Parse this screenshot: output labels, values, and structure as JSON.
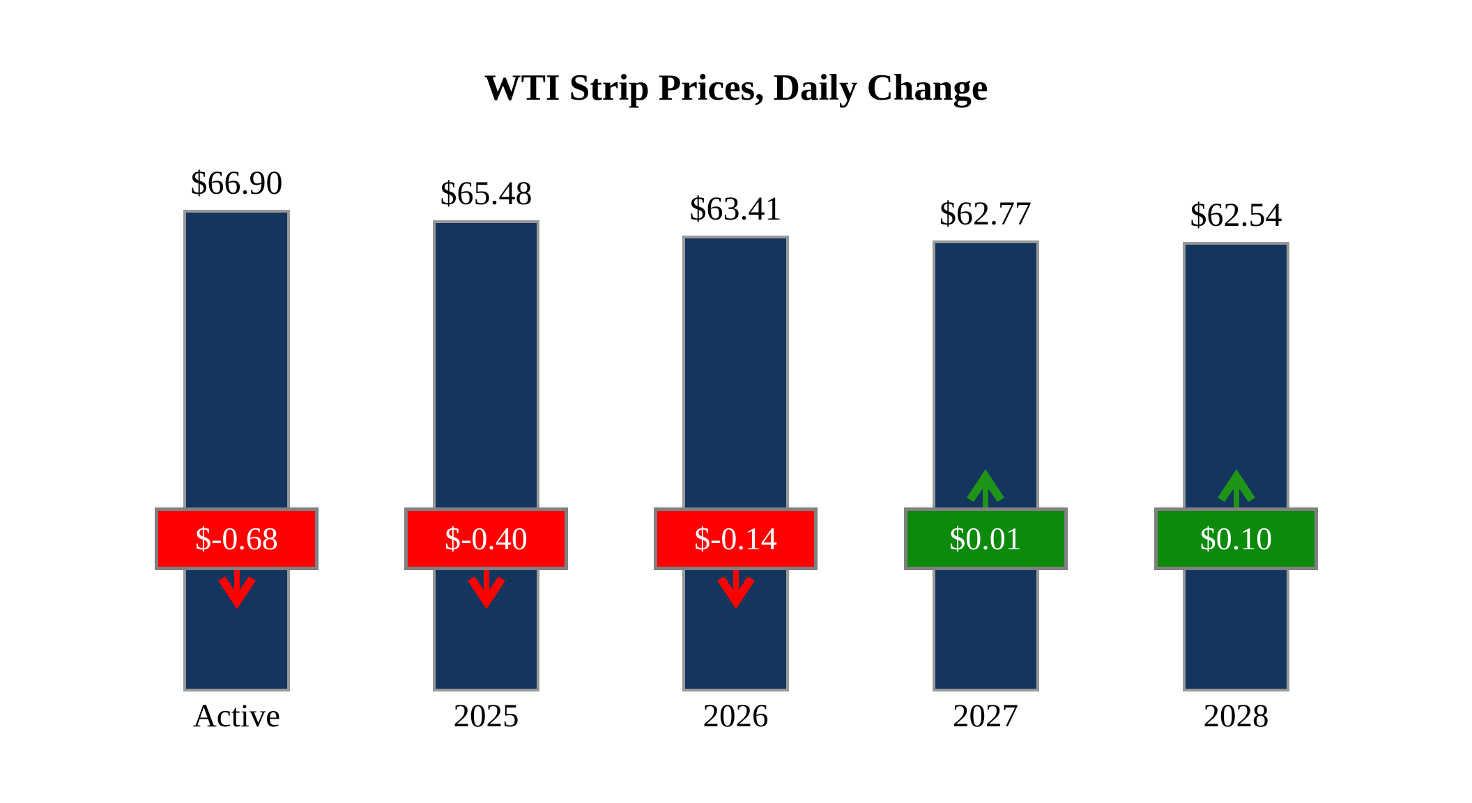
{
  "title": "WTI Strip Prices, Daily Change",
  "colors": {
    "bar_fill": "#13355E",
    "bar_border": "#999999",
    "badge_border": "#808080",
    "negative_red": "#FE0000",
    "positive_green": "#0B8A0B",
    "up_arrow_green": "#1F9417",
    "down_arrow_red": "#FE0000",
    "background": "#FFFFFF",
    "text": "#000000",
    "badge_text": "#FFFFFF"
  },
  "chart_data": {
    "type": "bar",
    "title": "WTI Strip Prices, Daily Change",
    "categories": [
      "Active",
      "2025",
      "2026",
      "2027",
      "2028"
    ],
    "series": [
      {
        "name": "Strip Price ($)",
        "values": [
          66.9,
          65.48,
          63.41,
          62.77,
          62.54
        ]
      },
      {
        "name": "Daily Change ($)",
        "values": [
          -0.68,
          -0.4,
          -0.14,
          0.01,
          0.1
        ]
      }
    ],
    "legend_position": "none",
    "grid": false,
    "xlabel": "",
    "ylabel": "",
    "bars": [
      {
        "label": "Active",
        "price": 66.9,
        "price_label": "$66.90",
        "change": -0.68,
        "change_label": "$-0.68",
        "direction": "down"
      },
      {
        "label": "2025",
        "price": 65.48,
        "price_label": "$65.48",
        "change": -0.4,
        "change_label": "$-0.40",
        "direction": "down"
      },
      {
        "label": "2026",
        "price": 63.41,
        "price_label": "$63.41",
        "change": -0.14,
        "change_label": "$-0.14",
        "direction": "down"
      },
      {
        "label": "2027",
        "price": 62.77,
        "price_label": "$62.77",
        "change": 0.01,
        "change_label": "$0.01",
        "direction": "up"
      },
      {
        "label": "2028",
        "price": 62.54,
        "price_label": "$62.54",
        "change": 0.1,
        "change_label": "$0.10",
        "direction": "up"
      }
    ]
  }
}
